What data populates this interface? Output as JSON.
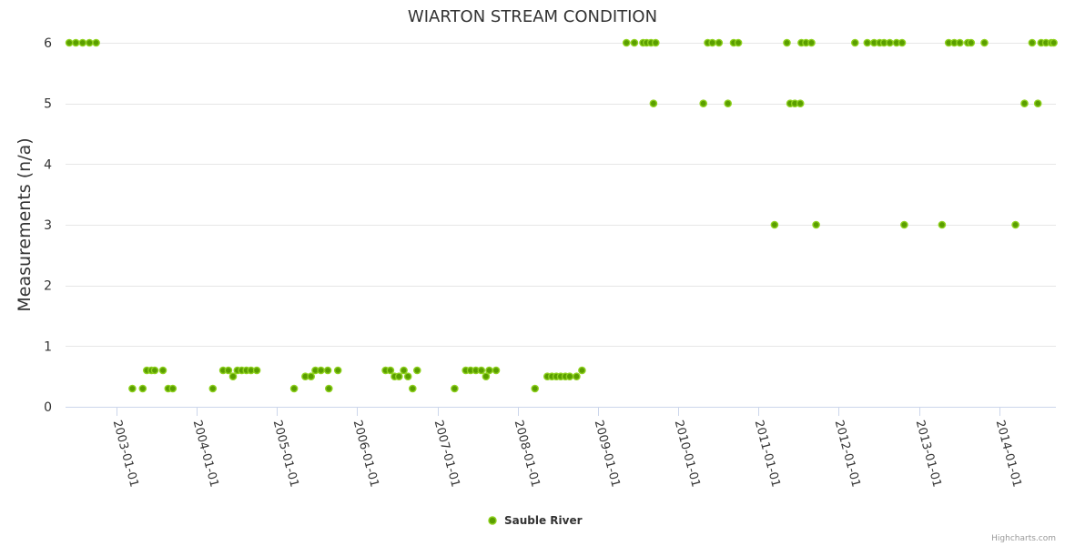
{
  "chart_data": {
    "type": "scatter",
    "title": "WIARTON STREAM CONDITION",
    "ylabel": "Measurements (n/a)",
    "xlabel": "",
    "ylim": [
      0,
      6
    ],
    "yticks": [
      0,
      1,
      2,
      3,
      4,
      5,
      6
    ],
    "xlim": [
      "2002-05-15",
      "2014-09-15"
    ],
    "xticks": [
      "2003-01-01",
      "2004-01-01",
      "2005-01-01",
      "2006-01-01",
      "2007-01-01",
      "2008-01-01",
      "2009-01-01",
      "2010-01-01",
      "2011-01-01",
      "2012-01-01",
      "2013-01-01",
      "2014-01-01"
    ],
    "grid": true,
    "legend_position": "bottom-center",
    "credits": "Highcharts.com",
    "color": "#5a9e00",
    "stroke_color": "#8fd11f",
    "series": [
      {
        "name": "Sauble River",
        "points": [
          [
            "2002-06-01",
            6
          ],
          [
            "2002-07-01",
            6
          ],
          [
            "2002-08-01",
            6
          ],
          [
            "2002-09-01",
            6
          ],
          [
            "2002-10-01",
            6
          ],
          [
            "2003-03-15",
            0.3
          ],
          [
            "2003-05-01",
            0.3
          ],
          [
            "2003-05-20",
            0.6
          ],
          [
            "2003-06-10",
            0.6
          ],
          [
            "2003-06-25",
            0.6
          ],
          [
            "2003-08-01",
            0.6
          ],
          [
            "2003-08-25",
            0.3
          ],
          [
            "2003-09-15",
            0.3
          ],
          [
            "2004-03-15",
            0.3
          ],
          [
            "2004-05-01",
            0.6
          ],
          [
            "2004-05-25",
            0.6
          ],
          [
            "2004-06-15",
            0.5
          ],
          [
            "2004-07-05",
            0.6
          ],
          [
            "2004-07-25",
            0.6
          ],
          [
            "2004-08-15",
            0.6
          ],
          [
            "2004-09-05",
            0.6
          ],
          [
            "2004-10-01",
            0.6
          ],
          [
            "2005-03-20",
            0.3
          ],
          [
            "2005-05-10",
            0.5
          ],
          [
            "2005-06-05",
            0.5
          ],
          [
            "2005-06-25",
            0.6
          ],
          [
            "2005-07-20",
            0.6
          ],
          [
            "2005-08-20",
            0.6
          ],
          [
            "2005-08-25",
            0.3
          ],
          [
            "2005-10-05",
            0.6
          ],
          [
            "2006-05-10",
            0.6
          ],
          [
            "2006-06-01",
            0.6
          ],
          [
            "2006-06-20",
            0.5
          ],
          [
            "2006-07-10",
            0.5
          ],
          [
            "2006-08-01",
            0.6
          ],
          [
            "2006-08-20",
            0.5
          ],
          [
            "2006-09-10",
            0.3
          ],
          [
            "2006-10-01",
            0.6
          ],
          [
            "2007-03-20",
            0.3
          ],
          [
            "2007-05-10",
            0.6
          ],
          [
            "2007-06-01",
            0.6
          ],
          [
            "2007-06-25",
            0.6
          ],
          [
            "2007-07-20",
            0.6
          ],
          [
            "2007-08-10",
            0.5
          ],
          [
            "2007-08-25",
            0.6
          ],
          [
            "2007-09-25",
            0.6
          ],
          [
            "2008-03-20",
            0.3
          ],
          [
            "2008-05-15",
            0.5
          ],
          [
            "2008-06-05",
            0.5
          ],
          [
            "2008-06-25",
            0.5
          ],
          [
            "2008-07-15",
            0.5
          ],
          [
            "2008-08-05",
            0.5
          ],
          [
            "2008-08-25",
            0.5
          ],
          [
            "2008-09-25",
            0.5
          ],
          [
            "2008-10-20",
            0.6
          ],
          [
            "2009-05-10",
            6
          ],
          [
            "2009-06-15",
            6
          ],
          [
            "2009-07-25",
            6
          ],
          [
            "2009-08-10",
            6
          ],
          [
            "2009-08-30",
            6
          ],
          [
            "2009-09-10",
            5
          ],
          [
            "2009-09-20",
            6
          ],
          [
            "2010-04-25",
            5
          ],
          [
            "2010-05-15",
            6
          ],
          [
            "2010-06-05",
            6
          ],
          [
            "2010-07-05",
            6
          ],
          [
            "2010-08-15",
            5
          ],
          [
            "2010-09-10",
            6
          ],
          [
            "2010-10-01",
            6
          ],
          [
            "2011-03-15",
            3
          ],
          [
            "2011-05-10",
            6
          ],
          [
            "2011-05-25",
            5
          ],
          [
            "2011-06-15",
            5
          ],
          [
            "2011-07-10",
            5
          ],
          [
            "2011-07-15",
            6
          ],
          [
            "2011-08-05",
            6
          ],
          [
            "2011-08-30",
            6
          ],
          [
            "2011-09-20",
            3
          ],
          [
            "2012-03-15",
            6
          ],
          [
            "2012-05-10",
            6
          ],
          [
            "2012-06-10",
            6
          ],
          [
            "2012-07-05",
            6
          ],
          [
            "2012-07-25",
            6
          ],
          [
            "2012-08-20",
            6
          ],
          [
            "2012-09-20",
            6
          ],
          [
            "2012-10-15",
            6
          ],
          [
            "2012-10-25",
            3
          ],
          [
            "2013-04-15",
            3
          ],
          [
            "2013-05-15",
            6
          ],
          [
            "2013-06-10",
            6
          ],
          [
            "2013-07-05",
            6
          ],
          [
            "2013-08-10",
            6
          ],
          [
            "2013-08-25",
            6
          ],
          [
            "2013-10-25",
            6
          ],
          [
            "2014-03-15",
            3
          ],
          [
            "2014-04-25",
            5
          ],
          [
            "2014-05-30",
            6
          ],
          [
            "2014-06-25",
            5
          ],
          [
            "2014-07-10",
            6
          ],
          [
            "2014-08-01",
            6
          ],
          [
            "2014-08-25",
            6
          ],
          [
            "2014-09-05",
            6
          ]
        ]
      }
    ]
  }
}
